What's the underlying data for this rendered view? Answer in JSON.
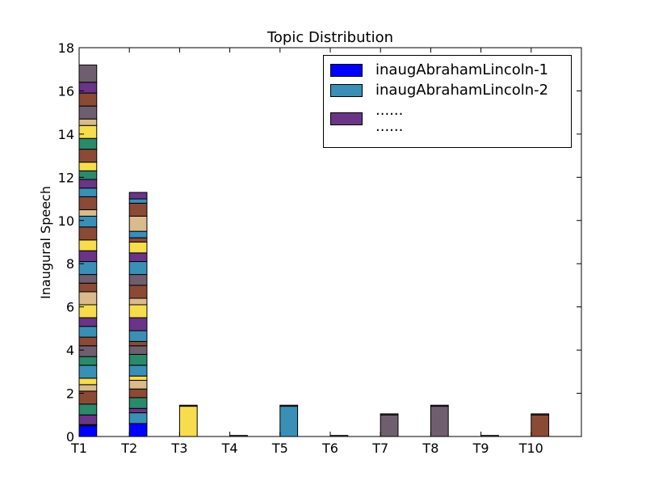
{
  "chart_data": {
    "type": "stacked-bar",
    "title": "Topic Distribution",
    "y_label": "Inaugural Speech",
    "categories": [
      "T1",
      "T2",
      "T3",
      "T4",
      "T5",
      "T6",
      "T7",
      "T8",
      "T9",
      "T10"
    ],
    "xlim": [
      0,
      10
    ],
    "ylim": [
      0,
      18
    ],
    "yticks": [
      0,
      2,
      4,
      6,
      8,
      10,
      12,
      14,
      16,
      18
    ],
    "bar_width": 0.35,
    "series": [
      {
        "name": "inaugAbrahamLincoln-1",
        "color": "#0000ff",
        "values": [
          0.5,
          0.6,
          0,
          0,
          0,
          0,
          0,
          0,
          0,
          0
        ]
      },
      {
        "name": "inaugAbrahamLincoln-2",
        "color": "#3a8fb7",
        "values": [
          0.05,
          0.5,
          0,
          0,
          0,
          0,
          0,
          0,
          0,
          0
        ]
      },
      {
        "name": "......\n......",
        "color": "#6a3586",
        "values": [
          0.45,
          0.2,
          0,
          0,
          0,
          0,
          0,
          0,
          0,
          0
        ]
      },
      {
        "color": "#2a8a6b",
        "values": [
          0.5,
          0.5,
          0,
          0,
          0,
          0,
          0,
          0,
          0,
          0
        ]
      },
      {
        "color": "#8b4a36",
        "values": [
          0.6,
          0.4,
          0,
          0,
          0,
          0,
          0,
          0,
          0,
          1.0
        ]
      },
      {
        "color": "#d9bb8c",
        "values": [
          0.3,
          0.4,
          0,
          0,
          0,
          0,
          0,
          0,
          0,
          0
        ]
      },
      {
        "color": "#f7dc4d",
        "values": [
          0.3,
          0.2,
          1.4,
          0,
          0,
          0,
          0,
          0,
          0,
          0
        ]
      },
      {
        "color": "#3a8fb7",
        "values": [
          0.6,
          0.5,
          0,
          0,
          1.4,
          0,
          0,
          0,
          0,
          0
        ]
      },
      {
        "color": "#2a8a6b",
        "values": [
          0.4,
          0.5,
          0,
          0,
          0,
          0,
          0,
          0,
          0,
          0
        ]
      },
      {
        "color": "#6f5f6e",
        "values": [
          0.5,
          0.4,
          0,
          0,
          0,
          0,
          1.0,
          0,
          0,
          0
        ]
      },
      {
        "color": "#8b4a36",
        "values": [
          0.4,
          0.2,
          0,
          0,
          0,
          0,
          0,
          0,
          0,
          0
        ]
      },
      {
        "color": "#3a8fb7",
        "values": [
          0.5,
          0.5,
          0,
          0,
          0,
          0,
          0,
          0,
          0,
          0
        ]
      },
      {
        "color": "#6a3586",
        "values": [
          0.4,
          0.6,
          0,
          0,
          0,
          0,
          0,
          0,
          0,
          0
        ]
      },
      {
        "color": "#f7dc4d",
        "values": [
          0.6,
          0.6,
          0,
          0,
          0,
          0,
          0,
          0,
          0,
          0
        ]
      },
      {
        "color": "#d9bb8c",
        "values": [
          0.6,
          0.3,
          0,
          0,
          0,
          0,
          0,
          0,
          0,
          0
        ]
      },
      {
        "color": "#8b4a36",
        "values": [
          0.4,
          0.6,
          0,
          0,
          0,
          0,
          0,
          0,
          0,
          0
        ]
      },
      {
        "color": "#6f5f6e",
        "values": [
          0.4,
          0.5,
          0,
          0,
          0,
          0,
          0,
          1.4,
          0,
          0
        ]
      },
      {
        "color": "#3a8fb7",
        "values": [
          0.6,
          0.6,
          0,
          0,
          0,
          0,
          0,
          0,
          0,
          0
        ]
      },
      {
        "color": "#6a3586",
        "values": [
          0.5,
          0.4,
          0,
          0,
          0,
          0,
          0,
          0,
          0,
          0
        ]
      },
      {
        "color": "#f7dc4d",
        "values": [
          0.5,
          0.5,
          0,
          0,
          0,
          0,
          0,
          0,
          0,
          0
        ]
      },
      {
        "color": "#8b4a36",
        "values": [
          0.6,
          0.2,
          0,
          0,
          0,
          0,
          0,
          0,
          0,
          0
        ]
      },
      {
        "color": "#3a8fb7",
        "values": [
          0.5,
          0.3,
          0,
          0,
          0,
          0,
          0,
          0,
          0,
          0
        ]
      },
      {
        "color": "#d9bb8c",
        "values": [
          0.3,
          0.7,
          0,
          0,
          0,
          0,
          0,
          0,
          0,
          0
        ]
      },
      {
        "color": "#8b4a36",
        "values": [
          0.6,
          0.6,
          0,
          0,
          0,
          0,
          0,
          0,
          0,
          0
        ]
      },
      {
        "color": "#3a8fb7",
        "values": [
          0.4,
          0.2,
          0,
          0,
          0,
          0,
          0,
          0,
          0,
          0
        ]
      },
      {
        "color": "#6a3586",
        "values": [
          0.4,
          0.3,
          0,
          0,
          0,
          0,
          0,
          0,
          0,
          0
        ]
      },
      {
        "color": "#2a8a6b",
        "values": [
          0.4,
          0,
          0,
          0,
          0,
          0,
          0,
          0,
          0,
          0
        ]
      },
      {
        "color": "#f7dc4d",
        "values": [
          0.4,
          0,
          0,
          0,
          0,
          0,
          0,
          0,
          0,
          0
        ]
      },
      {
        "color": "#8b4a36",
        "values": [
          0.6,
          0,
          0,
          0,
          0,
          0,
          0,
          0,
          0,
          0
        ]
      },
      {
        "color": "#2a8a6b",
        "values": [
          0.5,
          0,
          0,
          0,
          0,
          0,
          0,
          0,
          0,
          0
        ]
      },
      {
        "color": "#f7dc4d",
        "values": [
          0.6,
          0,
          0,
          0,
          0,
          0,
          0,
          0,
          0,
          0
        ]
      },
      {
        "color": "#d9bb8c",
        "values": [
          0.3,
          0,
          0,
          0,
          0,
          0,
          0,
          0,
          0,
          0
        ]
      },
      {
        "color": "#6f5f6e",
        "values": [
          0.6,
          0,
          0,
          0,
          0,
          0,
          0,
          0,
          0,
          0
        ]
      },
      {
        "color": "#8b4a36",
        "values": [
          0.6,
          0,
          0,
          0,
          0,
          0,
          0,
          0,
          0,
          0
        ]
      },
      {
        "color": "#6a3586",
        "values": [
          0.5,
          0,
          0,
          0,
          0,
          0,
          0,
          0,
          0,
          0
        ]
      },
      {
        "color": "#6f5f6e",
        "values": [
          0.8,
          0,
          0.05,
          0.05,
          0.05,
          0.05,
          0.05,
          0.05,
          0.05,
          0.05
        ]
      }
    ]
  }
}
